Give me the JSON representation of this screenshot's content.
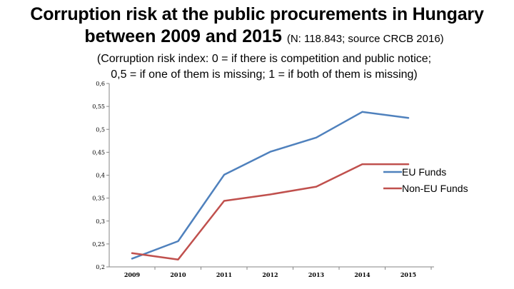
{
  "title": {
    "line1": "Corruption risk at the public procurements in Hungary",
    "line2_main": "between 2009 and 2015",
    "line2_note": "(N: 118.843; source CRCB 2016)"
  },
  "subtitle": {
    "line1": "(Corruption risk index: 0 = if there is competition and public notice;",
    "line2": "0,5 = if one of them is missing; 1 = if both of them is missing)"
  },
  "chart_data": {
    "type": "line",
    "x": [
      "2009",
      "2010",
      "2011",
      "2012",
      "2013",
      "2014",
      "2015"
    ],
    "series": [
      {
        "name": "EU Funds",
        "color": "#4f81bd",
        "values": [
          0.218,
          0.256,
          0.401,
          0.451,
          0.482,
          0.538,
          0.525
        ]
      },
      {
        "name": "Non-EU Funds",
        "color": "#c0504d",
        "values": [
          0.23,
          0.216,
          0.344,
          0.358,
          0.375,
          0.424,
          0.424
        ]
      }
    ],
    "ylim": [
      0.2,
      0.6
    ],
    "yticks": [
      0.2,
      0.25,
      0.3,
      0.35,
      0.4,
      0.45,
      0.5,
      0.55,
      0.6
    ],
    "ytick_labels": [
      "0,2",
      "0,25",
      "0,3",
      "0,35",
      "0,4",
      "0,45",
      "0,5",
      "0,55",
      "0,6"
    ],
    "grid": false,
    "legend_position": "right"
  }
}
